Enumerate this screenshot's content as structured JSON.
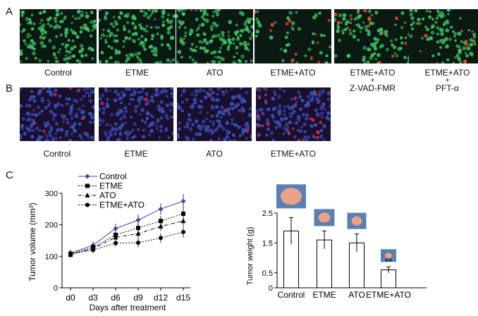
{
  "panels": {
    "a": {
      "letter": "A",
      "items": [
        {
          "label": "Control",
          "sublines": []
        },
        {
          "label": "ETME",
          "sublines": []
        },
        {
          "label": "ATO",
          "sublines": []
        },
        {
          "label": "ETME+ATO",
          "sublines": []
        },
        {
          "label": "ETME+ATO",
          "sublines": [
            "+",
            "Z-VAD-FMR"
          ]
        },
        {
          "label": "ETME+ATO",
          "sublines": [
            "+",
            "PFT-α"
          ]
        }
      ]
    },
    "b": {
      "letter": "B",
      "items": [
        {
          "label": "Control"
        },
        {
          "label": "ETME"
        },
        {
          "label": "ATO"
        },
        {
          "label": "ETME+ATO"
        }
      ]
    },
    "c": {
      "letter": "C"
    }
  },
  "colors": {
    "stain_bg": "#0a1a12",
    "stain_green": "#3fbf63",
    "stain_red": "#e04a2a",
    "hoechst_bg": "#1a0f2e",
    "hoechst_blue": "#3a4fb8",
    "hoechst_red": "#c0304a",
    "control_line": "#3a4aa8",
    "line_black": "#000000",
    "tumor": "#e9a28a",
    "tumor_bg": "#5a7fb0"
  },
  "chart_data": [
    {
      "type": "line",
      "xlabel": "Days after treatment",
      "ylabel": "Tumor volume (mm³)",
      "ylim": [
        0,
        300
      ],
      "yticks": [
        0,
        100,
        200,
        300
      ],
      "categories": [
        "d0",
        "d3",
        "d6",
        "d9",
        "d12",
        "d15"
      ],
      "legend_position": "top-left",
      "series": [
        {
          "name": "Control",
          "marker": "diamond",
          "dash": "solid",
          "values": [
            110,
            135,
            188,
            215,
            250,
            275
          ],
          "errors": [
            12,
            12,
            15,
            18,
            18,
            22
          ]
        },
        {
          "name": "ETME",
          "marker": "square",
          "dash": "dotted",
          "values": [
            108,
            128,
            168,
            190,
            212,
            235
          ],
          "errors": [
            10,
            12,
            14,
            15,
            16,
            18
          ]
        },
        {
          "name": "ATO",
          "marker": "triangle",
          "dash": "dashdot",
          "values": [
            105,
            125,
            160,
            172,
            195,
            212
          ],
          "errors": [
            10,
            12,
            14,
            14,
            15,
            16
          ]
        },
        {
          "name": "ETME+ATO",
          "marker": "circle",
          "dash": "dotted",
          "values": [
            108,
            120,
            142,
            143,
            158,
            177
          ],
          "errors": [
            10,
            10,
            12,
            15,
            15,
            18
          ]
        }
      ]
    },
    {
      "type": "bar",
      "ylabel": "Tumor weight (g)",
      "ylim": [
        0,
        2.5
      ],
      "yticks": [
        0,
        0.5,
        1.5,
        2.5
      ],
      "categories": [
        "Control",
        "ETME",
        "ATO",
        "ETME+ATO"
      ],
      "values": [
        1.9,
        1.6,
        1.5,
        0.6
      ],
      "errors": [
        0.45,
        0.3,
        0.3,
        0.1
      ],
      "annotations": [
        {
          "category": "ETME+ATO",
          "text": "**"
        }
      ]
    }
  ]
}
